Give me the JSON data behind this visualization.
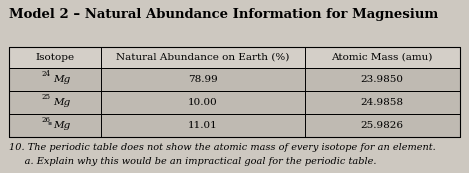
{
  "title": "Model 2 – Natural Abundance Information for Magnesium",
  "col_headers": [
    "Isotope",
    "Natural Abundance on Earth (%)",
    "Atomic Mass (amu)"
  ],
  "rows": [
    {
      "isotope_mass": "24",
      "isotope_sym": "Mg",
      "abundance": "78.99",
      "atomic_mass": "23.9850"
    },
    {
      "isotope_mass": "25",
      "isotope_sym": "Mg",
      "abundance": "10.00",
      "atomic_mass": "24.9858"
    },
    {
      "isotope_mass": "26",
      "isotope_sym": "Mg",
      "abundance": "11.01",
      "atomic_mass": "25.9826"
    }
  ],
  "footnote_line1": "10. The periodic table does not show the atomic mass of every isotope for an element.",
  "footnote_line2": "     a. Explain why this would be an impractical goal for the periodic table.",
  "bg_color": "#cdc8c0",
  "cell_bg": "#bfbab2",
  "header_bg": "#d4cfc8",
  "border_color": "#000000",
  "title_fontsize": 9.5,
  "header_fontsize": 7.5,
  "cell_fontsize": 7.5,
  "footnote_fontsize": 7.0
}
